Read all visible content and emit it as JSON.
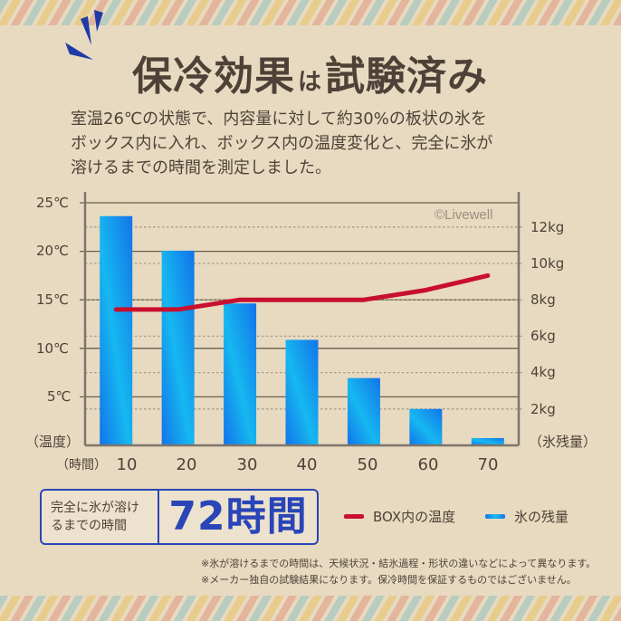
{
  "header": {
    "title_part1": "保冷効果",
    "title_connector": "は",
    "title_part2": "試験済み",
    "accent_color": "#1f3aa8"
  },
  "description": {
    "lines": [
      "室温26℃の状態で、内容量に対して約30%の板状の氷を",
      "ボックス内に入れ、ボックス内の温度変化と、完全に氷が",
      "溶けるまでの時間を測定しました。"
    ]
  },
  "chart": {
    "watermark": "©Livewell",
    "left_axis_title": "（温度）",
    "right_axis_title": "（氷残量）",
    "x_axis_title": "（時間）",
    "left_ticks": [
      "25℃",
      "20℃",
      "15℃",
      "10℃",
      "5℃"
    ],
    "right_ticks": [
      "12kg",
      "10kg",
      "8kg",
      "6kg",
      "4kg",
      "2kg"
    ],
    "x_ticks": [
      "10",
      "20",
      "30",
      "40",
      "50",
      "60",
      "70"
    ]
  },
  "chart_data": {
    "type": "bar",
    "title": "保冷効果は試験済み",
    "xlabel": "（時間）",
    "ylabel": "（温度）",
    "y2label": "（氷残量）",
    "categories": [
      "10",
      "20",
      "30",
      "40",
      "50",
      "60",
      "70"
    ],
    "series": [
      {
        "name": "氷の残量",
        "type": "bar",
        "axis": "right",
        "unit": "kg",
        "color": "#1a9ef0",
        "values": [
          12.6,
          10.7,
          7.8,
          5.8,
          3.7,
          2.0,
          0.4
        ]
      },
      {
        "name": "BOX内の温度",
        "type": "line",
        "axis": "left",
        "unit": "℃",
        "color": "#c8102e",
        "values": [
          14.0,
          14.0,
          15.0,
          15.0,
          15.0,
          16.0,
          17.5
        ]
      }
    ],
    "ylim": [
      0,
      26
    ],
    "y2lim": [
      0,
      14
    ],
    "left_ticks": [
      5,
      10,
      15,
      20,
      25
    ],
    "right_ticks": [
      2,
      4,
      6,
      8,
      10,
      12
    ],
    "grid": true,
    "legend_position": "bottom-right",
    "annotations": [
      "©Livewell"
    ]
  },
  "result": {
    "label_line1": "完全に氷が溶け",
    "label_line2": "るまでの時間",
    "value": "72時間"
  },
  "legend": {
    "items": [
      {
        "label": "BOX内の温度",
        "color": "#c8102e"
      },
      {
        "label": "氷の残量",
        "color": "#1a9ef0"
      }
    ]
  },
  "notes": [
    "※氷が溶けるまでの時間は、天候状況・結氷過程・形状の違いなどによって異なります。",
    "※メーカー独自の試験結果になります。保冷時間を保証するものではございません。"
  ]
}
